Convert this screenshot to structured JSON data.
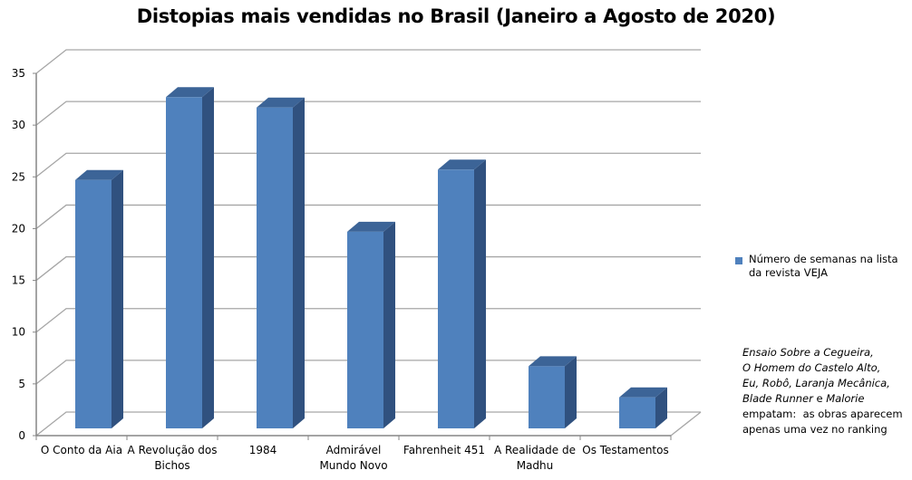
{
  "chart_data": {
    "type": "bar",
    "style": "3d-column",
    "title": "Distopias mais vendidas no Brasil (Janeiro a Agosto de 2020)",
    "xlabel": "",
    "ylabel": "",
    "categories": [
      "O Conto da Aia",
      "A Revolução dos Bichos",
      "1984",
      "Admirável Mundo Novo",
      "Fahrenheit 451",
      "A Realidade de Madhu",
      "Os Testamentos"
    ],
    "category_label_lines": [
      [
        "O Conto da Aia"
      ],
      [
        "A Revolução dos",
        "Bichos"
      ],
      [
        "1984"
      ],
      [
        "Admirável",
        "Mundo Novo"
      ],
      [
        "Fahrenheit 451"
      ],
      [
        "A Realidade de",
        "Madhu"
      ],
      [
        "Os Testamentos"
      ]
    ],
    "series": [
      {
        "name": "Número de semanas na lista da revista VEJA",
        "values": [
          24,
          32,
          31,
          19,
          25,
          6,
          3
        ],
        "color": "#4f81bd"
      }
    ],
    "ylim": [
      0,
      35
    ],
    "yticks": [
      0,
      5,
      10,
      15,
      20,
      25,
      30,
      35
    ],
    "grid": true,
    "legend_position": "right",
    "annotation": {
      "italic_lines": [
        "Ensaio Sobre a Cegueira,",
        "O Homem do Castelo Alto,",
        "Eu, Robô, Laranja Mecânica,"
      ],
      "line4_italic_a": "Blade Runner",
      "line4_normal": " e ",
      "line4_italic_b": "Malorie",
      "normal_lines": [
        "empatam:  as obras aparecem",
        "apenas uma vez no ranking"
      ]
    }
  },
  "legend": {
    "label_line1": "Número de semanas na lista",
    "label_line2": "da revista VEJA"
  },
  "colors": {
    "bar_front": "#4f81bd",
    "bar_side": "#30517f",
    "bar_top": "#3c6497",
    "grid": "#a6a6a6",
    "axis": "#868686"
  }
}
